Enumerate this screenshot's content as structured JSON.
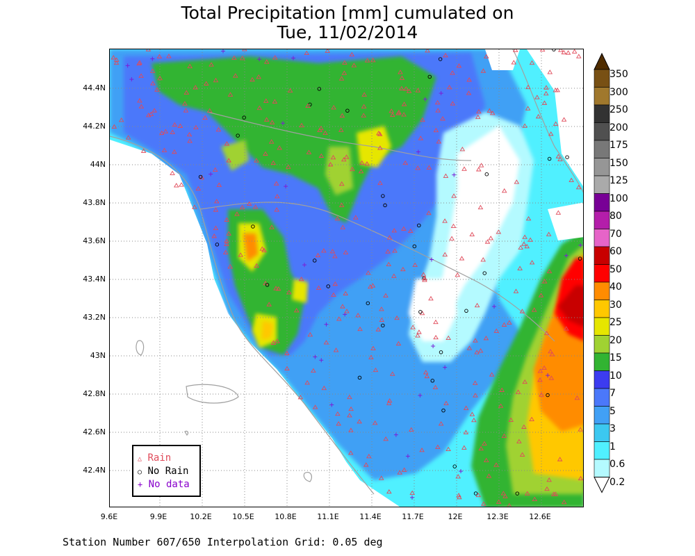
{
  "title": {
    "line1": "Total Precipitation [mm] cumulated on",
    "line2": "Tue, 11/02/2014"
  },
  "map": {
    "type": "precipitation-contour-map",
    "region": "Tuscany / Central Italy",
    "y_axis_labels": [
      "44.4N",
      "44.2N",
      "44N",
      "43.8N",
      "43.6N",
      "43.4N",
      "43.2N",
      "43N",
      "42.8N",
      "42.6N",
      "42.4N"
    ],
    "x_axis_labels": [
      "9.6E",
      "9.9E",
      "10.2E",
      "10.5E",
      "10.8E",
      "11.1E",
      "11.4E",
      "11.7E",
      "12E",
      "12.3E",
      "12.6E"
    ],
    "grid": true
  },
  "legend": {
    "rain": "Rain",
    "no_rain": "No Rain",
    "no_data": "No data",
    "colors": {
      "rain": "#e04a5a",
      "no_rain": "#000000",
      "no_data": "#8800cc"
    }
  },
  "colorbar": {
    "levels": [
      "0.2",
      "0.6",
      "1",
      "3",
      "5",
      "7",
      "10",
      "15",
      "20",
      "25",
      "30",
      "40",
      "50",
      "60",
      "70",
      "80",
      "100",
      "125",
      "150",
      "175",
      "200",
      "250",
      "300",
      "350"
    ],
    "colors": [
      "#ffffff",
      "#b4faff",
      "#50f0ff",
      "#3cc8f0",
      "#41a0f5",
      "#4b78fa",
      "#3c3cf0",
      "#32b432",
      "#a0d232",
      "#e6e600",
      "#ffc800",
      "#ff8c00",
      "#ff0000",
      "#c80000",
      "#e664c8",
      "#b41eaa",
      "#780096",
      "#aaaaaa",
      "#969696",
      "#787878",
      "#505050",
      "#323232",
      "#a0782d",
      "#785014",
      "#502d00"
    ]
  },
  "footer": "Station Number 607/650 Interpolation Grid: 0.05 deg"
}
